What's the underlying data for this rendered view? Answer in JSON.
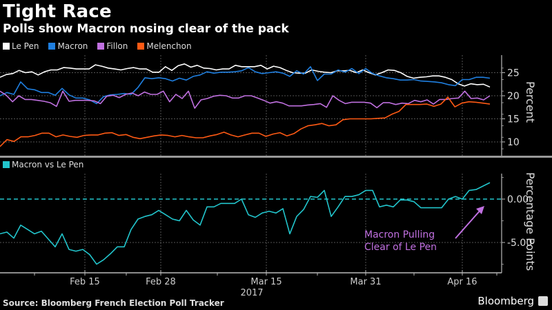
{
  "header": {
    "title": "Tight Race",
    "subtitle": "Polls show Macron nosing clear of the pack"
  },
  "footer": {
    "source": "Source: Bloomberg French Election Poll Tracker",
    "brand": "Bloomberg"
  },
  "chart_data": [
    {
      "type": "line",
      "title": "Tight Race",
      "subtitle": "Polls show Macron nosing clear of the pack",
      "ylabel": "Percent",
      "xlabel": "",
      "ylim": [
        8,
        28
      ],
      "yticks": [
        10,
        15,
        20,
        25
      ],
      "ytick_labels": [
        "10",
        "15",
        "20",
        "25"
      ],
      "grid": true,
      "legend_position": "top-left",
      "x_start": "2017-02-05",
      "x_end": "2017-04-21",
      "series": [
        {
          "name": "Le Pen",
          "color": "#ffffff",
          "values": [
            24,
            24.6,
            24.8,
            25.5,
            25,
            25.2,
            24.5,
            25.2,
            25.6,
            25.6,
            26.1,
            26,
            25.8,
            25.8,
            25.8,
            26.7,
            26.4,
            26,
            25.8,
            25.6,
            25.9,
            26.1,
            25.8,
            25.8,
            25.1,
            25.1,
            26.3,
            25.5,
            26.5,
            26.9,
            26.2,
            26.6,
            26,
            25.9,
            25.6,
            25.8,
            25.8,
            26.6,
            26.3,
            26.3,
            26.3,
            26.6,
            25.8,
            26.4,
            26.1,
            25.5,
            25,
            24.9,
            24.9,
            25.6,
            25.3,
            25.1,
            25,
            25.4,
            25.4,
            25.5,
            25,
            25.6,
            25,
            24.5,
            25,
            25.6,
            25.5,
            25,
            24.2,
            23.8,
            24,
            24.1,
            24.3,
            24.3,
            24,
            23.5,
            22.6,
            22.1,
            22.6,
            22.4,
            22.5,
            21.9
          ]
        },
        {
          "name": "Macron",
          "color": "#1f7fe0",
          "values": [
            20,
            20.7,
            20.3,
            23,
            21.5,
            21.3,
            20.7,
            20.7,
            20.1,
            21.6,
            20.2,
            19.5,
            19.5,
            19.1,
            18.3,
            19.8,
            20.2,
            20.3,
            20.5,
            20.3,
            21.8,
            23.9,
            23.7,
            23.9,
            23.7,
            23.2,
            23.8,
            23.4,
            24.2,
            24.5,
            25.2,
            24.9,
            25.1,
            25.1,
            25.2,
            25.4,
            26.1,
            25.2,
            24.8,
            25,
            25.2,
            24.9,
            24.2,
            25.4,
            24.7,
            26.3,
            23.3,
            24.7,
            24.7,
            25.6,
            25.1,
            25.9,
            24.8,
            25.9,
            24.8,
            24.3,
            23.9,
            23.7,
            23.4,
            23.4,
            23.5,
            23.2,
            23.1,
            23,
            22.8,
            22.4,
            22.2,
            23.5,
            23.5,
            24,
            24,
            23.8
          ]
        },
        {
          "name": "Fillon",
          "color": "#c070e0",
          "values": [
            21,
            20.1,
            18.7,
            20,
            19.2,
            19.2,
            19,
            18.8,
            18.5,
            17.7,
            21,
            18.8,
            19,
            19,
            19,
            18.9,
            18.3,
            19.9,
            20.1,
            19.6,
            20.3,
            20.6,
            20,
            20.8,
            20.3,
            20.3,
            21,
            18.7,
            20.3,
            19.4,
            21,
            17.3,
            19.1,
            19.4,
            19.9,
            20.1,
            20,
            19.5,
            19.5,
            20,
            20,
            19.5,
            19,
            18.4,
            18.7,
            18.4,
            17.8,
            17.8,
            17.8,
            18,
            18.1,
            18.3,
            17.5,
            20,
            19,
            18.3,
            18.6,
            18.6,
            18.6,
            18.4,
            17.4,
            18.5,
            18.5,
            18.1,
            18.4,
            18.3,
            19,
            18.7,
            19.1,
            18.2,
            19.2,
            19.2,
            19.4,
            19.5,
            21,
            19.4,
            19.5,
            19.1,
            20
          ]
        },
        {
          "name": "Melenchon",
          "color": "#ff5a14",
          "values": [
            9,
            10.5,
            10.1,
            11.1,
            11.1,
            11.4,
            11.9,
            11.9,
            11.1,
            11.5,
            11.2,
            11,
            11.4,
            11.5,
            11.5,
            11.9,
            12,
            11.4,
            11.6,
            11,
            10.7,
            11,
            11.3,
            11.5,
            11.4,
            11.1,
            11.4,
            11.1,
            10.9,
            10.9,
            11.3,
            11.6,
            12.1,
            11.5,
            11.1,
            11.5,
            11.9,
            11.9,
            11.2,
            11.7,
            12,
            11.3,
            11.8,
            12.8,
            13.5,
            13.7,
            14,
            13.5,
            13.7,
            14.8,
            15,
            15,
            15,
            15,
            15.1,
            15.2,
            16,
            16.6,
            18.1,
            18.1,
            18.1,
            18.2,
            17.7,
            18.2,
            19.7,
            17.6,
            18.4,
            18.7,
            18.6,
            18.4,
            18.2
          ]
        }
      ],
      "x_tick_labels": [
        "Feb 15",
        "Feb 28",
        "Mar 15",
        "Mar 31",
        "Apr 16"
      ]
    },
    {
      "type": "line",
      "title": "Macron vs Le Pen",
      "ylabel": "Percentage Points",
      "ylim": [
        -8.5,
        2.8
      ],
      "yticks": [
        0,
        -5
      ],
      "ytick_labels": [
        "0.00",
        "-5.00"
      ],
      "reference_line": 0,
      "grid": true,
      "legend_position": "top-left",
      "annotation": {
        "line1": "Macron Pulling",
        "line2": "Clear of Le Pen",
        "color": "#c070e0"
      },
      "series": [
        {
          "name": "Macron vs Le Pen",
          "color": "#22c5cc",
          "values": [
            -4,
            -3.8,
            -4.5,
            -3,
            -3.5,
            -4,
            -3.7,
            -4.6,
            -5.5,
            -4,
            -5.8,
            -6,
            -5.8,
            -6.4,
            -7.5,
            -7,
            -6.3,
            -5.5,
            -5.5,
            -3.5,
            -2.3,
            -2,
            -1.8,
            -1.3,
            -1.8,
            -2.3,
            -2.5,
            -1.3,
            -2.4,
            -3,
            -0.9,
            -0.9,
            -0.5,
            -0.5,
            -0.5,
            0,
            -1.8,
            -2.1,
            -1.6,
            -1.4,
            -1.6,
            -1.1,
            -4,
            -2,
            -1.2,
            0.3,
            0.2,
            1,
            -2,
            -0.9,
            0.3,
            0.3,
            0.5,
            1,
            1,
            -0.9,
            -0.7,
            -0.9,
            -0.1,
            -0.1,
            -0.3,
            -1,
            -1,
            -1,
            -1,
            0,
            0.3,
            0,
            1,
            1.1,
            1.5,
            1.9
          ]
        }
      ],
      "x_tick_labels": [
        "Feb 15",
        "Feb 28",
        "Mar 15",
        "Mar 31",
        "Apr 16"
      ],
      "x_year_label": "2017"
    }
  ]
}
